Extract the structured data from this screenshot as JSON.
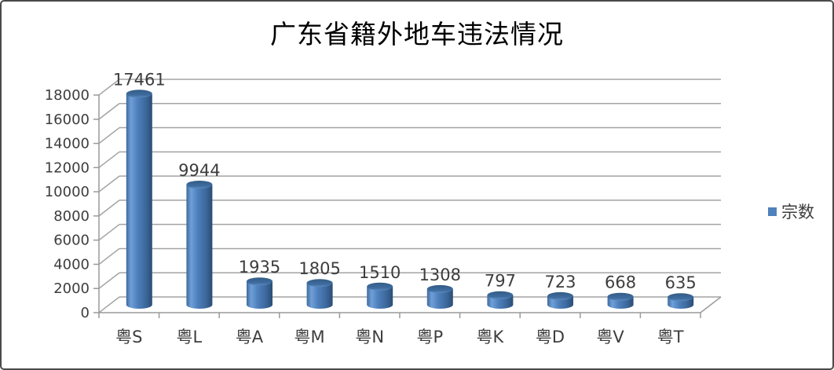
{
  "frame": {
    "background": "#ffffff",
    "border_color": "#4a4a4a"
  },
  "chart_data": {
    "type": "bar",
    "shape": "3d-cylinder",
    "title": "广东省籍外地车违法情况",
    "categories": [
      "粤S",
      "粤L",
      "粤A",
      "粤M",
      "粤N",
      "粤P",
      "粤K",
      "粤D",
      "粤V",
      "粤T"
    ],
    "series": [
      {
        "name": "宗数",
        "values": [
          17461,
          9944,
          1935,
          1805,
          1510,
          1308,
          797,
          723,
          668,
          635
        ]
      }
    ],
    "data_labels": true,
    "ylim": [
      0,
      18000
    ],
    "ytick_step": 2000,
    "ytick_labels": [
      "0",
      "2000",
      "4000",
      "6000",
      "8000",
      "10000",
      "12000",
      "14000",
      "16000",
      "18000"
    ],
    "grid": true,
    "legend_position": "right",
    "colors": {
      "bar": "#4f81bd",
      "bar_highlight": "#6f9fd8",
      "bar_shadow": "#2b4d74",
      "bar_edge": "#3f6a9c",
      "bar_top_dark": "#335c84",
      "bar_top_mid": "#3f6da1",
      "bar_top_light": "#5e8cbe",
      "gridline": "#a3a3a3",
      "axis": "#9a9a9a",
      "text": "#3d3d3d",
      "title": "#000000"
    }
  }
}
